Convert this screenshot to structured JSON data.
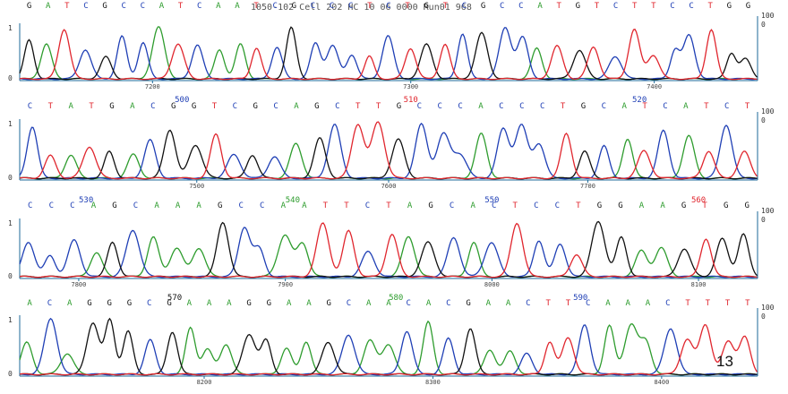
{
  "header": {
    "text": "1050-102 Cell 202 HC 10 06 0000 Run01 968"
  },
  "page_number": "13",
  "colors": {
    "A": "#2e9c2e",
    "C": "#1f3fb5",
    "G": "#111111",
    "T": "#e0262e",
    "axis": "#1e6a9a"
  },
  "chart_data": {
    "type": "line",
    "description_free": true,
    "panels": [
      {
        "bases": "GATCGCCATCAATCGCCCTCTGTCGCCATGTCTTCCTGG",
        "base_numbers": [],
        "scan_ticks": [
          "7200",
          "7300",
          "7400"
        ],
        "scan_tick_frac": [
          0.18,
          0.53,
          0.86
        ],
        "y_ticks": [
          "1",
          "0"
        ],
        "right_ticks": [
          "100",
          "0"
        ]
      },
      {
        "bases": "CTATGACGGTCGCAGCTTGCCCACCCTGCATCATCT",
        "base_numbers": [
          {
            "label": "500",
            "color": "#1f3fb5",
            "frac": 0.22
          },
          {
            "label": "510",
            "color": "#e0262e",
            "frac": 0.53
          },
          {
            "label": "520",
            "color": "#1f3fb5",
            "frac": 0.84
          }
        ],
        "scan_ticks": [
          "7500",
          "7600",
          "7700"
        ],
        "scan_tick_frac": [
          0.24,
          0.5,
          0.77
        ],
        "y_ticks": [
          "1",
          "0"
        ],
        "right_ticks": [
          "100",
          "0"
        ]
      },
      {
        "bases": "CCCAGCAAAGCCAATTCTAGCACTCCTGGAAGTGG",
        "base_numbers": [
          {
            "label": "530",
            "color": "#1f3fb5",
            "frac": 0.09
          },
          {
            "label": "540",
            "color": "#2e9c2e",
            "frac": 0.37
          },
          {
            "label": "550",
            "color": "#1f3fb5",
            "frac": 0.64
          },
          {
            "label": "560",
            "color": "#e0262e",
            "frac": 0.92
          }
        ],
        "scan_ticks": [
          "7800",
          "7900",
          "8000",
          "8100"
        ],
        "scan_tick_frac": [
          0.08,
          0.36,
          0.64,
          0.92
        ],
        "y_ticks": [
          "1",
          "0"
        ],
        "right_ticks": [
          "100",
          "0"
        ]
      },
      {
        "bases": "ACAGGGCGAAAGGAAGCAACACGAACTTCAAACTTTT",
        "base_numbers": [
          {
            "label": "570",
            "color": "#111111",
            "frac": 0.21
          },
          {
            "label": "580",
            "color": "#2e9c2e",
            "frac": 0.51
          },
          {
            "label": "590",
            "color": "#1f3fb5",
            "frac": 0.76
          }
        ],
        "scan_ticks": [
          "8200",
          "8300",
          "8400"
        ],
        "scan_tick_frac": [
          0.25,
          0.56,
          0.87
        ],
        "y_ticks": [
          "1",
          "0"
        ],
        "right_ticks": [
          "100",
          "0"
        ]
      }
    ]
  }
}
